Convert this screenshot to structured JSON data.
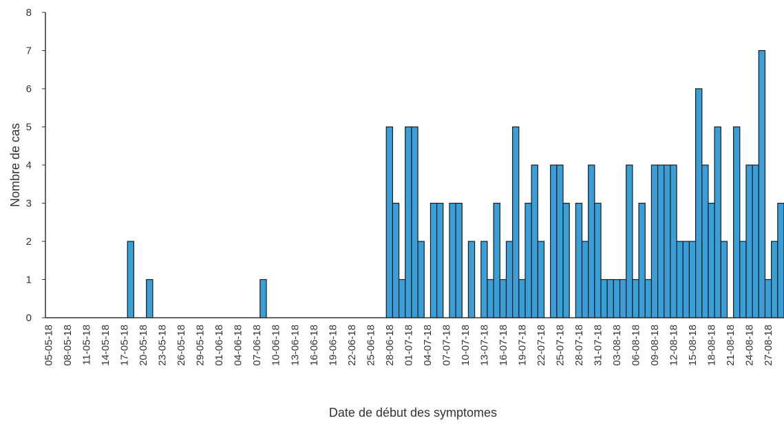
{
  "chart_data": {
    "type": "bar",
    "xlabel": "Date de début des symptomes",
    "ylabel": "Nombre de cas",
    "color": "#3a9fd9",
    "ylim": [
      0,
      8
    ],
    "yticks": [
      0,
      1,
      2,
      3,
      4,
      5,
      6,
      7,
      8
    ],
    "categories": [
      "05-05-18",
      null,
      null,
      "08-05-18",
      null,
      null,
      "11-05-18",
      null,
      null,
      "14-05-18",
      null,
      null,
      "17-05-18",
      null,
      null,
      "20-05-18",
      null,
      null,
      "23-05-18",
      null,
      null,
      "26-05-18",
      null,
      null,
      "29-05-18",
      null,
      null,
      "01-06-18",
      null,
      null,
      "04-06-18",
      null,
      null,
      "07-06-18",
      null,
      null,
      "10-06-18",
      null,
      null,
      "13-06-18",
      null,
      null,
      "16-06-18",
      null,
      null,
      "19-06-18",
      null,
      null,
      "22-06-18",
      null,
      null,
      "25-06-18",
      null,
      null,
      "28-06-18",
      null,
      null,
      "01-07-18",
      null,
      null,
      "04-07-18",
      null,
      null,
      "07-07-18",
      null,
      null,
      "10-07-18",
      null,
      null,
      "13-07-18",
      null,
      null,
      "16-07-18",
      null,
      null,
      "19-07-18",
      null,
      null,
      "22-07-18",
      null,
      null,
      "25-07-18",
      null,
      null,
      "28-07-18",
      null,
      null,
      "31-07-18",
      null,
      null,
      "03-08-18",
      null,
      null,
      "06-08-18",
      null,
      null,
      "09-08-18",
      null,
      null,
      "12-08-18",
      null,
      null,
      "15-08-18",
      null,
      null,
      "18-08-18",
      null,
      null,
      "21-08-18",
      null,
      null,
      "24-08-18",
      null,
      null,
      "27-08-18",
      null,
      null
    ],
    "values": [
      0,
      0,
      0,
      0,
      0,
      0,
      0,
      0,
      0,
      0,
      0,
      0,
      0,
      2,
      0,
      0,
      1,
      0,
      0,
      0,
      0,
      0,
      0,
      0,
      0,
      0,
      0,
      0,
      0,
      0,
      0,
      0,
      0,
      0,
      1,
      0,
      0,
      0,
      0,
      0,
      0,
      0,
      0,
      0,
      0,
      0,
      0,
      0,
      0,
      0,
      0,
      0,
      0,
      0,
      5,
      3,
      1,
      5,
      5,
      2,
      0,
      3,
      3,
      0,
      3,
      3,
      0,
      2,
      0,
      2,
      1,
      3,
      1,
      2,
      5,
      1,
      3,
      4,
      2,
      0,
      4,
      4,
      3,
      0,
      3,
      2,
      4,
      3,
      1,
      1,
      1,
      1,
      4,
      1,
      3,
      1,
      4,
      4,
      4,
      4,
      2,
      2,
      2,
      6,
      4,
      3,
      5,
      2,
      0,
      5,
      2,
      4,
      4,
      7,
      1,
      2,
      3
    ]
  }
}
